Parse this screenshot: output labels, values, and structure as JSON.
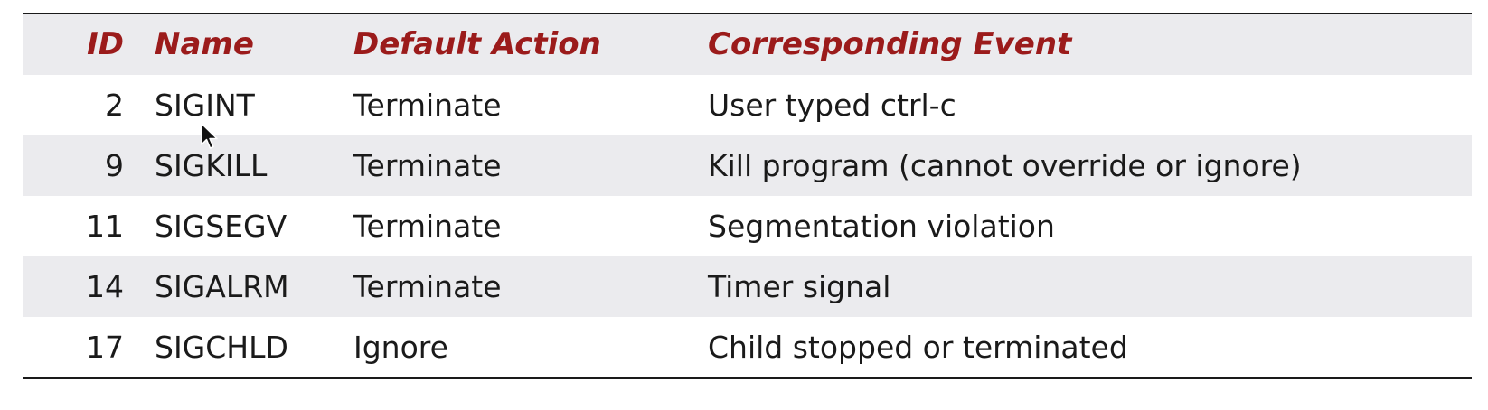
{
  "table": {
    "headers": {
      "id": "ID",
      "name": "Name",
      "action": "Default Action",
      "event": "Corresponding Event"
    },
    "rows": [
      {
        "id": "2",
        "name": "SIGINT",
        "action": "Terminate",
        "event": "User typed ctrl-c"
      },
      {
        "id": "9",
        "name": "SIGKILL",
        "action": "Terminate",
        "event": "Kill program (cannot override or ignore)"
      },
      {
        "id": "11",
        "name": "SIGSEGV",
        "action": "Terminate",
        "event": "Segmentation violation"
      },
      {
        "id": "14",
        "name": "SIGALRM",
        "action": "Terminate",
        "event": "Timer signal"
      },
      {
        "id": "17",
        "name": "SIGCHLD",
        "action": "Ignore",
        "event": "Child stopped or terminated"
      }
    ]
  },
  "colors": {
    "header_text": "#9b1b1b",
    "row_shade": "#ebebee",
    "body_text": "#1a1a1a"
  },
  "icons": {
    "cursor": "mouse-pointer-icon"
  }
}
